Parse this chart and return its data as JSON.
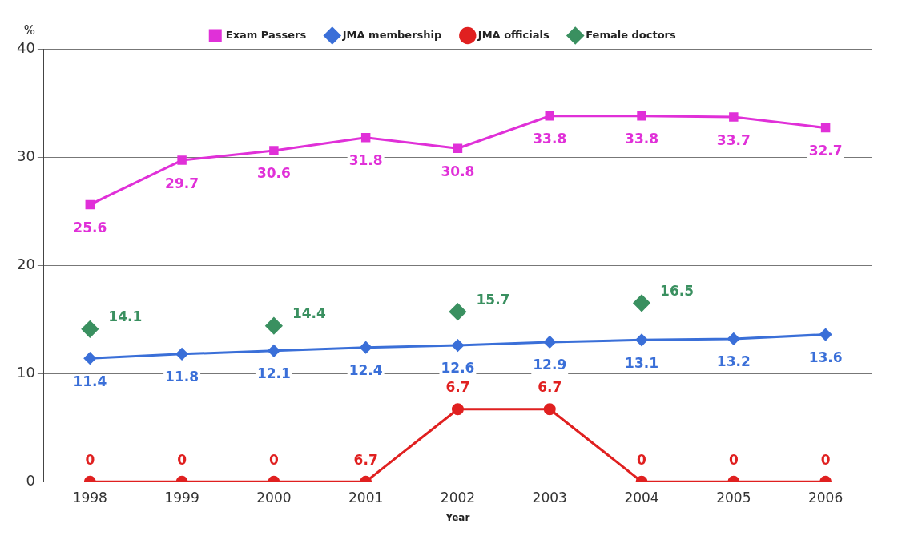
{
  "chart_data": {
    "type": "line",
    "xlabel": "Year",
    "ylabel": "%",
    "categories": [
      "1998",
      "1999",
      "2000",
      "2001",
      "2002",
      "2003",
      "2004",
      "2005",
      "2006"
    ],
    "series": [
      {
        "name": "Exam Passers",
        "color": "#e030d8",
        "marker": "square",
        "values": [
          25.6,
          29.7,
          30.6,
          31.8,
          30.8,
          33.8,
          33.8,
          33.7,
          32.7
        ],
        "value_labels": [
          "25.6",
          "29.7",
          "30.6",
          "31.8",
          "30.8",
          "33.8",
          "33.8",
          "33.7",
          "32.7"
        ]
      },
      {
        "name": "JMA membership",
        "color": "#3a6fd8",
        "marker": "diamond",
        "values": [
          11.4,
          11.8,
          12.1,
          12.4,
          12.6,
          12.9,
          13.1,
          13.2,
          13.6
        ],
        "value_labels": [
          "11.4",
          "11.8",
          "12.1",
          "12.4",
          "12.6",
          "12.9",
          "13.1",
          "13.2",
          "13.6"
        ]
      },
      {
        "name": "JMA officials",
        "color": "#e02020",
        "marker": "circle",
        "values": [
          0,
          0,
          0,
          0,
          6.7,
          6.7,
          0,
          0,
          0
        ],
        "value_labels": [
          "0",
          "0",
          "0",
          null,
          "6.7",
          "6.7",
          "0",
          "0",
          "0"
        ]
      },
      {
        "name": "Female doctors",
        "type": "scatter",
        "color": "#3a9060",
        "marker": "diamond",
        "values": [
          14.1,
          null,
          14.4,
          null,
          15.7,
          null,
          16.5,
          null,
          null
        ],
        "value_labels": [
          "14.1",
          null,
          "14.4",
          null,
          "15.7",
          null,
          "16.5",
          null,
          null
        ]
      }
    ],
    "ylim": [
      0,
      40
    ],
    "yticks": [
      0,
      10,
      20,
      30,
      40
    ],
    "grid": "y",
    "legend": "top",
    "annotations": [
      {
        "text": "6.7",
        "x": "2001",
        "y": 0
      }
    ]
  }
}
